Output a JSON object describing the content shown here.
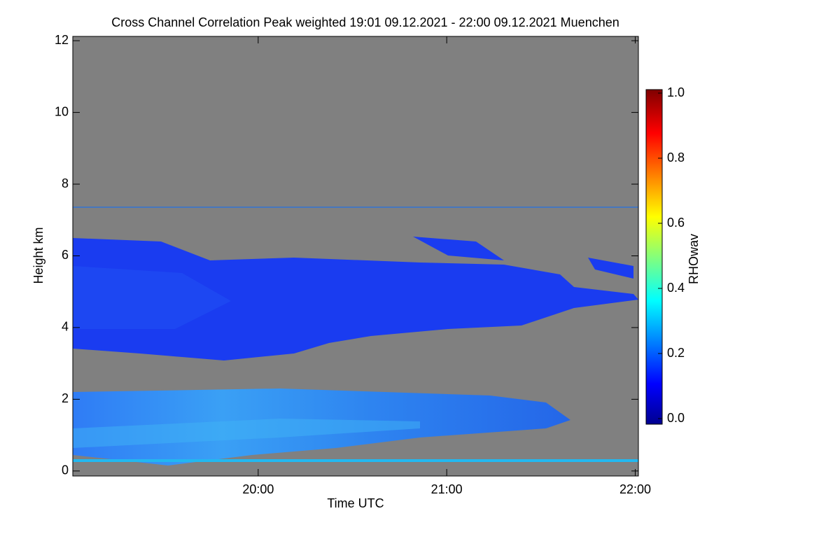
{
  "chart_data": {
    "type": "heatmap",
    "title": "Cross Channel Correlation Peak weighted   19:01 09.12.2021 - 22:00 09.12.2021 Muenchen",
    "xlabel": "Time UTC",
    "ylabel": "Height km",
    "colorbar_label": "RHOwav",
    "xlim": [
      1,
      181
    ],
    "xticks": [
      {
        "value": 60,
        "label": "20:00"
      },
      {
        "value": 120,
        "label": "21:00"
      },
      {
        "value": 180,
        "label": "22:00"
      }
    ],
    "ylim": [
      -0.14,
      12.12
    ],
    "yticks": [
      0,
      2,
      4,
      6,
      8,
      10,
      12
    ],
    "clim": [
      0,
      1
    ],
    "cticks": [
      {
        "value": 0,
        "label": "0.0"
      },
      {
        "value": 0.2,
        "label": "0.2"
      },
      {
        "value": 0.4,
        "label": "0.4"
      },
      {
        "value": 0.6,
        "label": "0.6"
      },
      {
        "value": 0.8,
        "label": "0.8"
      },
      {
        "value": 1,
        "label": "1.0"
      }
    ]
  }
}
